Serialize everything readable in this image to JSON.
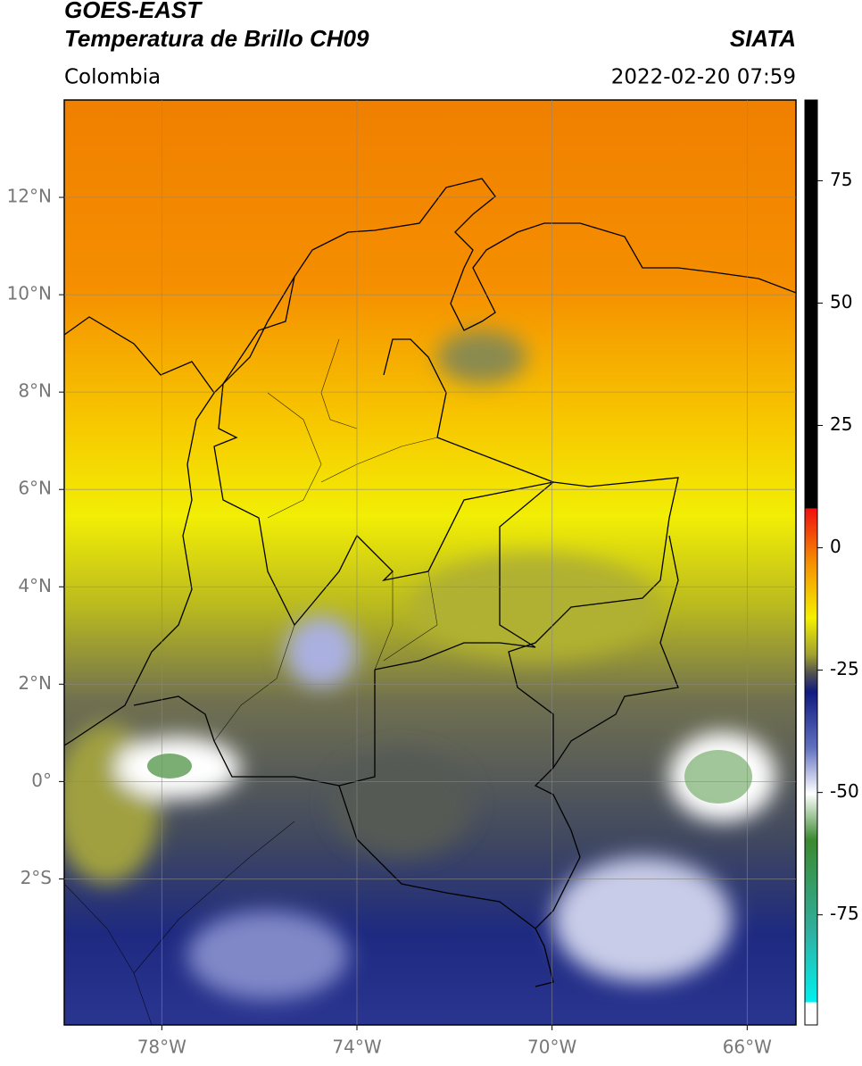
{
  "header": {
    "satellite": "GOES-EAST",
    "product": "Temperatura de Brillo CH09",
    "region": "Colombia",
    "source": "SIATA",
    "datetime": "2022-02-20 07:59"
  },
  "map": {
    "xlim": [
      -80,
      -65
    ],
    "ylim": [
      -5,
      14
    ],
    "xticks": [
      {
        "value": -78,
        "label": "78°W"
      },
      {
        "value": -74,
        "label": "74°W"
      },
      {
        "value": -70,
        "label": "70°W"
      },
      {
        "value": -66,
        "label": "66°W"
      }
    ],
    "yticks": [
      {
        "value": -2,
        "label": "2°S"
      },
      {
        "value": 0,
        "label": "0°"
      },
      {
        "value": 2,
        "label": "2°N"
      },
      {
        "value": 4,
        "label": "4°N"
      },
      {
        "value": 6,
        "label": "6°N"
      },
      {
        "value": 8,
        "label": "8°N"
      },
      {
        "value": 10,
        "label": "10°N"
      },
      {
        "value": 12,
        "label": "12°N"
      }
    ],
    "grid": true
  },
  "colorbar": {
    "lim": [
      -97.5,
      91.5
    ],
    "ticks": [
      -75,
      -50,
      -25,
      0,
      25,
      50,
      75
    ]
  }
}
